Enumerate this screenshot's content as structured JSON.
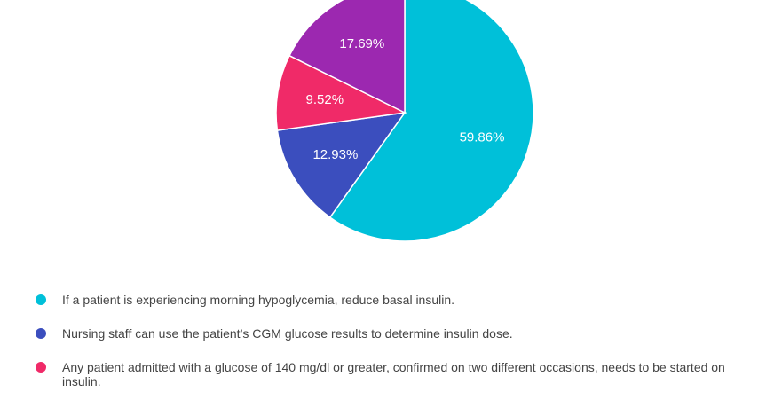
{
  "chart_data": {
    "type": "pie",
    "start_angle_deg": 0,
    "direction": "clockwise",
    "slices": [
      {
        "label": "If a patient is experiencing morning hypoglycemia, reduce basal insulin.",
        "value": 59.86,
        "display": "59.86%",
        "color": "#00C0D9"
      },
      {
        "label": "Nursing staff can use the patient’s CGM glucose results to determine insulin dose.",
        "value": 12.93,
        "display": "12.93%",
        "color": "#3B4EBE"
      },
      {
        "label": "Any patient admitted with a glucose of 140 mg/dl or greater, confirmed on two different occasions, needs to be started on insulin.",
        "value": 9.52,
        "display": "9.52%",
        "color": "#F02A68"
      },
      {
        "label": "",
        "value": 17.69,
        "display": "17.69%",
        "color": "#9C28B0"
      }
    ],
    "legend_position": "bottom-left",
    "legend_entries": [
      {
        "label": "If a patient is experiencing morning hypoglycemia, reduce basal insulin.",
        "color": "#00C0D9"
      },
      {
        "label": "Nursing staff can use the patient’s CGM glucose results to determine insulin dose.",
        "color": "#3B4EBE"
      },
      {
        "label": "Any patient admitted with a glucose of 140 mg/dl or greater, confirmed on two different occasions, needs to be started on insulin.",
        "color": "#F02A68"
      }
    ]
  }
}
